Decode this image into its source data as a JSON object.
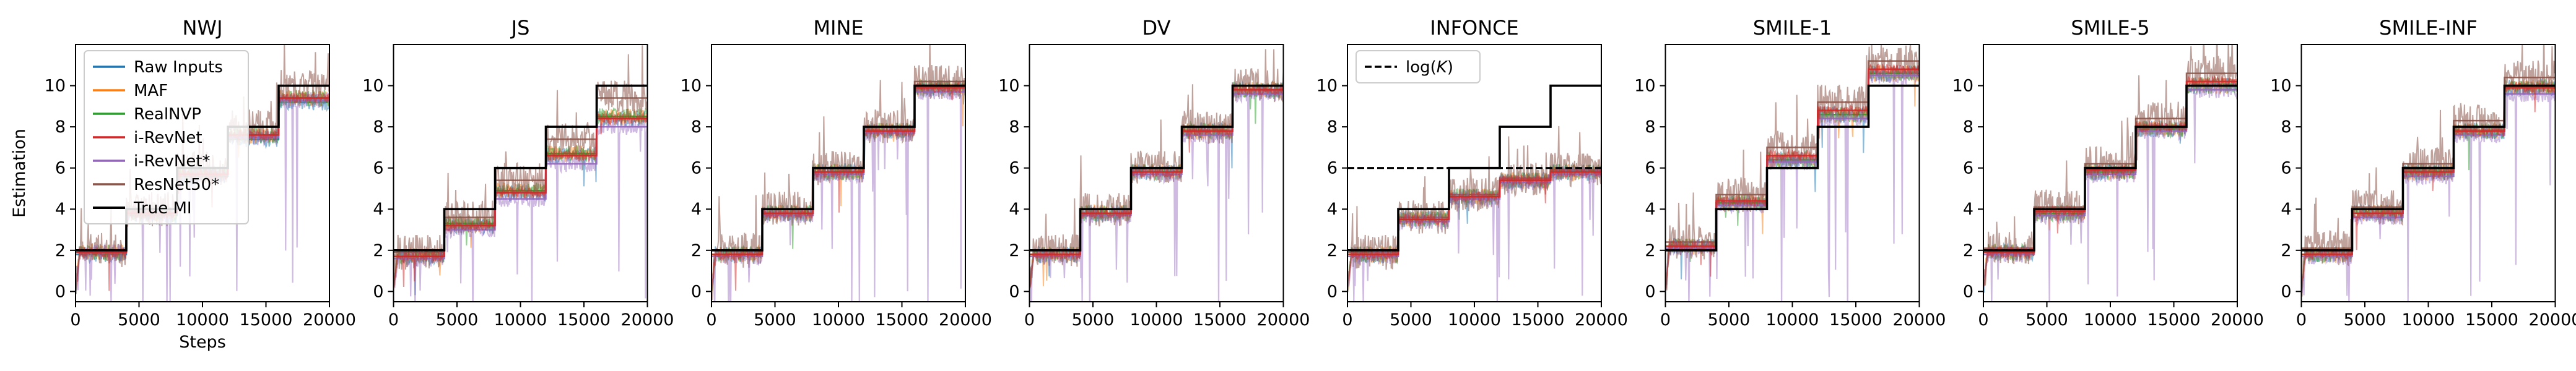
{
  "colors": {
    "Raw Inputs": "#1f77b4",
    "MAF": "#ff7f0e",
    "RealNVP": "#2ca02c",
    "i-RevNet": "#d62728",
    "i-RevNet*": "#9467bd",
    "ResNet50*": "#8c564b",
    "True MI": "#000000",
    "log(K)": "#000000"
  },
  "chart_data": [
    {
      "type": "line",
      "title": "NWJ",
      "xlabel": "Steps",
      "ylabel": "Estimation",
      "xlim": [
        0,
        20000
      ],
      "ylim": [
        -0.5,
        12
      ],
      "xticks": [
        "0",
        "5000",
        "10000",
        "15000",
        "20000"
      ],
      "yticks": [
        "0",
        "2",
        "4",
        "6",
        "8",
        "10"
      ],
      "legend": {
        "placement": "top-left",
        "entries": [
          "Raw Inputs",
          "MAF",
          "RealNVP",
          "i-RevNet",
          "i-RevNet*",
          "ResNet50*",
          "True MI"
        ]
      },
      "true_mi_steps": [
        [
          0,
          2
        ],
        [
          4000,
          4
        ],
        [
          8000,
          6
        ],
        [
          12000,
          8
        ],
        [
          16000,
          10
        ],
        [
          20000,
          10
        ]
      ],
      "series": [
        {
          "name": "Raw Inputs",
          "levels": [
            1.8,
            3.7,
            5.6,
            7.4,
            9.2
          ]
        },
        {
          "name": "MAF",
          "levels": [
            1.9,
            3.8,
            5.7,
            7.6,
            9.4
          ]
        },
        {
          "name": "RealNVP",
          "levels": [
            1.9,
            3.8,
            5.7,
            7.6,
            9.4
          ]
        },
        {
          "name": "i-RevNet",
          "levels": [
            1.9,
            3.8,
            5.7,
            7.6,
            9.4
          ]
        },
        {
          "name": "i-RevNet*",
          "levels": [
            1.9,
            3.8,
            5.7,
            7.5,
            9.3
          ]
        },
        {
          "name": "ResNet50*",
          "levels": [
            2.0,
            4.0,
            6.0,
            8.0,
            10.0
          ]
        }
      ]
    },
    {
      "type": "line",
      "title": "JS",
      "xlabel": "",
      "ylabel": "",
      "xlim": [
        0,
        20000
      ],
      "ylim": [
        -0.5,
        12
      ],
      "xticks": [
        "0",
        "5000",
        "10000",
        "15000",
        "20000"
      ],
      "yticks": [
        "0",
        "2",
        "4",
        "6",
        "8",
        "10"
      ],
      "true_mi_steps": [
        [
          0,
          2
        ],
        [
          4000,
          4
        ],
        [
          8000,
          6
        ],
        [
          12000,
          8
        ],
        [
          16000,
          10
        ],
        [
          20000,
          10
        ]
      ],
      "series": [
        {
          "name": "Raw Inputs",
          "levels": [
            1.7,
            3.2,
            4.8,
            6.6,
            8.4
          ]
        },
        {
          "name": "MAF",
          "levels": [
            1.7,
            3.3,
            4.9,
            6.7,
            8.5
          ]
        },
        {
          "name": "RealNVP",
          "levels": [
            1.7,
            3.3,
            4.9,
            6.7,
            8.5
          ]
        },
        {
          "name": "i-RevNet",
          "levels": [
            1.7,
            3.2,
            4.8,
            6.6,
            8.4
          ]
        },
        {
          "name": "i-RevNet*",
          "levels": [
            1.6,
            3.0,
            4.5,
            6.2,
            8.0
          ]
        },
        {
          "name": "ResNet50*",
          "levels": [
            1.9,
            3.6,
            5.4,
            7.4,
            9.4
          ]
        }
      ]
    },
    {
      "type": "line",
      "title": "MINE",
      "xlabel": "",
      "ylabel": "",
      "xlim": [
        0,
        20000
      ],
      "ylim": [
        -0.5,
        12
      ],
      "xticks": [
        "0",
        "5000",
        "10000",
        "15000",
        "20000"
      ],
      "yticks": [
        "0",
        "2",
        "4",
        "6",
        "8",
        "10"
      ],
      "true_mi_steps": [
        [
          0,
          2
        ],
        [
          4000,
          4
        ],
        [
          8000,
          6
        ],
        [
          12000,
          8
        ],
        [
          16000,
          10
        ],
        [
          20000,
          10
        ]
      ],
      "series": [
        {
          "name": "Raw Inputs",
          "levels": [
            1.8,
            3.8,
            5.8,
            7.8,
            9.9
          ]
        },
        {
          "name": "MAF",
          "levels": [
            1.8,
            3.8,
            5.8,
            7.8,
            9.9
          ]
        },
        {
          "name": "RealNVP",
          "levels": [
            1.8,
            3.8,
            5.8,
            7.8,
            9.9
          ]
        },
        {
          "name": "i-RevNet",
          "levels": [
            1.8,
            3.8,
            5.8,
            7.8,
            9.9
          ]
        },
        {
          "name": "i-RevNet*",
          "levels": [
            1.7,
            3.7,
            5.7,
            7.7,
            9.7
          ]
        },
        {
          "name": "ResNet50*",
          "levels": [
            2.0,
            4.0,
            6.0,
            8.0,
            10.2
          ]
        }
      ]
    },
    {
      "type": "line",
      "title": "DV",
      "xlabel": "",
      "ylabel": "",
      "xlim": [
        0,
        20000
      ],
      "ylim": [
        -0.5,
        12
      ],
      "xticks": [
        "0",
        "5000",
        "10000",
        "15000",
        "20000"
      ],
      "yticks": [
        "0",
        "2",
        "4",
        "6",
        "8",
        "10"
      ],
      "true_mi_steps": [
        [
          0,
          2
        ],
        [
          4000,
          4
        ],
        [
          8000,
          6
        ],
        [
          12000,
          8
        ],
        [
          16000,
          10
        ],
        [
          20000,
          10
        ]
      ],
      "series": [
        {
          "name": "Raw Inputs",
          "levels": [
            1.8,
            3.8,
            5.8,
            7.8,
            9.8
          ]
        },
        {
          "name": "MAF",
          "levels": [
            1.8,
            3.8,
            5.8,
            7.8,
            9.8
          ]
        },
        {
          "name": "RealNVP",
          "levels": [
            1.8,
            3.8,
            5.8,
            7.8,
            9.8
          ]
        },
        {
          "name": "i-RevNet",
          "levels": [
            1.8,
            3.8,
            5.8,
            7.8,
            9.8
          ]
        },
        {
          "name": "i-RevNet*",
          "levels": [
            1.7,
            3.7,
            5.7,
            7.6,
            9.6
          ]
        },
        {
          "name": "ResNet50*",
          "levels": [
            2.0,
            4.0,
            6.0,
            8.0,
            10.0
          ]
        }
      ]
    },
    {
      "type": "line",
      "title": "INFONCE",
      "xlabel": "",
      "ylabel": "",
      "xlim": [
        0,
        20000
      ],
      "ylim": [
        -0.5,
        12
      ],
      "xticks": [
        "0",
        "5000",
        "10000",
        "15000",
        "20000"
      ],
      "yticks": [
        "0",
        "2",
        "4",
        "6",
        "8",
        "10"
      ],
      "legend": {
        "placement": "top-left",
        "entries": [
          "log(K)"
        ]
      },
      "logK": 6,
      "true_mi_steps": [
        [
          0,
          2
        ],
        [
          4000,
          4
        ],
        [
          8000,
          6
        ],
        [
          12000,
          8
        ],
        [
          16000,
          10
        ],
        [
          20000,
          10
        ]
      ],
      "series": [
        {
          "name": "Raw Inputs",
          "levels": [
            1.8,
            3.5,
            4.6,
            5.4,
            5.8
          ]
        },
        {
          "name": "MAF",
          "levels": [
            1.8,
            3.5,
            4.6,
            5.4,
            5.8
          ]
        },
        {
          "name": "RealNVP",
          "levels": [
            1.8,
            3.5,
            4.6,
            5.4,
            5.8
          ]
        },
        {
          "name": "i-RevNet",
          "levels": [
            1.8,
            3.5,
            4.6,
            5.4,
            5.8
          ]
        },
        {
          "name": "i-RevNet*",
          "levels": [
            1.7,
            3.4,
            4.5,
            5.3,
            5.7
          ]
        },
        {
          "name": "ResNet50*",
          "levels": [
            1.9,
            3.6,
            4.7,
            5.5,
            5.9
          ]
        }
      ]
    },
    {
      "type": "line",
      "title": "SMILE-1",
      "xlabel": "",
      "ylabel": "",
      "xlim": [
        0,
        20000
      ],
      "ylim": [
        -0.5,
        12
      ],
      "xticks": [
        "0",
        "5000",
        "10000",
        "15000",
        "20000"
      ],
      "yticks": [
        "0",
        "2",
        "4",
        "6",
        "8",
        "10"
      ],
      "true_mi_steps": [
        [
          0,
          2
        ],
        [
          4000,
          4
        ],
        [
          8000,
          6
        ],
        [
          12000,
          8
        ],
        [
          16000,
          10
        ],
        [
          20000,
          10
        ]
      ],
      "series": [
        {
          "name": "Raw Inputs",
          "levels": [
            2.2,
            4.3,
            6.4,
            8.6,
            10.6
          ]
        },
        {
          "name": "MAF",
          "levels": [
            2.2,
            4.3,
            6.4,
            8.6,
            10.6
          ]
        },
        {
          "name": "RealNVP",
          "levels": [
            2.2,
            4.3,
            6.4,
            8.6,
            10.6
          ]
        },
        {
          "name": "i-RevNet",
          "levels": [
            2.2,
            4.4,
            6.6,
            8.8,
            10.8
          ]
        },
        {
          "name": "i-RevNet*",
          "levels": [
            2.1,
            4.2,
            6.3,
            8.4,
            10.5
          ]
        },
        {
          "name": "ResNet50*",
          "levels": [
            2.4,
            4.7,
            7.0,
            9.2,
            11.2
          ]
        }
      ]
    },
    {
      "type": "line",
      "title": "SMILE-5",
      "xlabel": "",
      "ylabel": "",
      "xlim": [
        0,
        20000
      ],
      "ylim": [
        -0.5,
        12
      ],
      "xticks": [
        "0",
        "5000",
        "10000",
        "15000",
        "20000"
      ],
      "yticks": [
        "0",
        "2",
        "4",
        "6",
        "8",
        "10"
      ],
      "true_mi_steps": [
        [
          0,
          2
        ],
        [
          4000,
          4
        ],
        [
          8000,
          6
        ],
        [
          12000,
          8
        ],
        [
          16000,
          10
        ],
        [
          20000,
          10
        ]
      ],
      "series": [
        {
          "name": "Raw Inputs",
          "levels": [
            1.9,
            3.8,
            5.8,
            7.9,
            10.0
          ]
        },
        {
          "name": "MAF",
          "levels": [
            1.9,
            3.8,
            5.8,
            7.9,
            10.0
          ]
        },
        {
          "name": "RealNVP",
          "levels": [
            1.9,
            3.8,
            5.8,
            7.9,
            10.0
          ]
        },
        {
          "name": "i-RevNet",
          "levels": [
            1.9,
            3.9,
            5.9,
            8.0,
            10.2
          ]
        },
        {
          "name": "i-RevNet*",
          "levels": [
            1.8,
            3.7,
            5.7,
            7.8,
            9.8
          ]
        },
        {
          "name": "ResNet50*",
          "levels": [
            2.1,
            4.1,
            6.2,
            8.4,
            10.6
          ]
        }
      ]
    },
    {
      "type": "line",
      "title": "SMILE-INF",
      "xlabel": "",
      "ylabel": "",
      "xlim": [
        0,
        20000
      ],
      "ylim": [
        -0.5,
        12
      ],
      "xticks": [
        "0",
        "5000",
        "10000",
        "15000",
        "20000"
      ],
      "yticks": [
        "0",
        "2",
        "4",
        "6",
        "8",
        "10"
      ],
      "true_mi_steps": [
        [
          0,
          2
        ],
        [
          4000,
          4
        ],
        [
          8000,
          6
        ],
        [
          12000,
          8
        ],
        [
          16000,
          10
        ],
        [
          20000,
          10
        ]
      ],
      "series": [
        {
          "name": "Raw Inputs",
          "levels": [
            1.8,
            3.8,
            5.8,
            7.8,
            9.9
          ]
        },
        {
          "name": "MAF",
          "levels": [
            1.8,
            3.8,
            5.8,
            7.8,
            9.9
          ]
        },
        {
          "name": "RealNVP",
          "levels": [
            1.8,
            3.8,
            5.8,
            7.8,
            9.9
          ]
        },
        {
          "name": "i-RevNet",
          "levels": [
            1.8,
            3.8,
            5.8,
            7.8,
            9.9
          ]
        },
        {
          "name": "i-RevNet*",
          "levels": [
            1.7,
            3.6,
            5.6,
            7.6,
            9.6
          ]
        },
        {
          "name": "ResNet50*",
          "levels": [
            2.1,
            4.1,
            6.2,
            8.3,
            10.4
          ]
        }
      ]
    }
  ]
}
